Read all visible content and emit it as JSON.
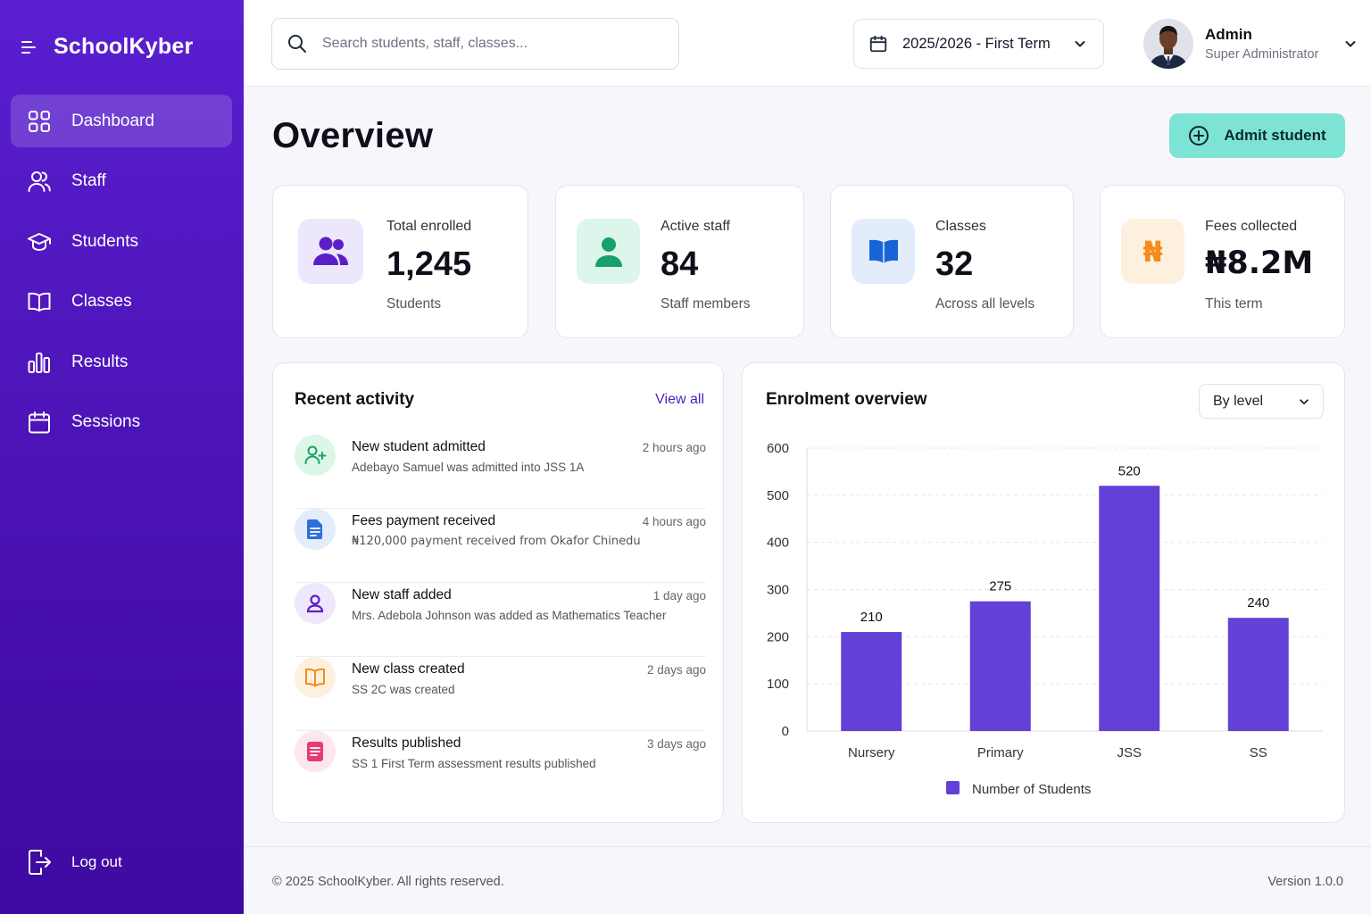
{
  "sidebar": {
    "brand": "SchoolKyber",
    "items": [
      {
        "label": "Dashboard",
        "icon": "dashboard-grid-icon",
        "active": true
      },
      {
        "label": "Staff",
        "icon": "users-icon"
      },
      {
        "label": "Students",
        "icon": "graduation-cap-icon"
      },
      {
        "label": "Classes",
        "icon": "open-book-icon"
      },
      {
        "label": "Results",
        "icon": "bar-chart-icon"
      },
      {
        "label": "Sessions",
        "icon": "calendar-icon"
      }
    ],
    "logout_label": "Log out"
  },
  "header": {
    "search_placeholder": "Search students, staff, classes...",
    "term": "2025/2026 - First Term",
    "user_name": "Admin",
    "user_role": "Super Administrator"
  },
  "main": {
    "title": "Overview",
    "admit_button": "Admit student"
  },
  "stats": [
    {
      "label": "Total enrolled",
      "value": "1,245",
      "sub": "Students",
      "icon": "users-icon",
      "color": "#5b1fc9",
      "bg": "#ede7fb"
    },
    {
      "label": "Active staff",
      "value": "84",
      "sub": "Staff members",
      "icon": "user-icon",
      "color": "#16a06a",
      "bg": "#dcf6ec"
    },
    {
      "label": "Classes",
      "value": "32",
      "sub": "Across all levels",
      "icon": "book-icon",
      "color": "#1565d8",
      "bg": "#e3ecfb"
    },
    {
      "label": "Fees collected",
      "value": "₦8.2M",
      "sub": "This term",
      "icon": "naira-icon",
      "glyph": "₦",
      "color": "#f28c1a",
      "bg": "#fdf0df"
    }
  ],
  "activity": {
    "title": "Recent activity",
    "view_all": "View all",
    "items": [
      {
        "title": "New student admitted",
        "desc": "Adebayo Samuel was admitted into JSS 1A",
        "time": "2 hours ago",
        "icon": "user-plus-icon",
        "color": "#1aa460",
        "bg": "#dcf7e8"
      },
      {
        "title": "Fees payment received",
        "desc": "₦120,000 payment received from Okafor Chinedu",
        "time": "4 hours ago",
        "icon": "document-icon",
        "color": "#2a6fdc",
        "bg": "#e3ecfb"
      },
      {
        "title": "New staff added",
        "desc": "Mrs. Adebola Johnson was added as Mathematics Teacher",
        "time": "1 day ago",
        "icon": "user-icon",
        "color": "#5b1fc9",
        "bg": "#efe8fc"
      },
      {
        "title": "New class created",
        "desc": "SS 2C was created",
        "time": "2 days ago",
        "icon": "book-icon",
        "color": "#f28c1a",
        "bg": "#fdf0df"
      },
      {
        "title": "Results published",
        "desc": "SS 1 First Term assessment results published",
        "time": "3 days ago",
        "icon": "report-icon",
        "color": "#e53b74",
        "bg": "#fde6ee"
      }
    ]
  },
  "enrolment": {
    "title": "Enrolment overview",
    "filter": "By level"
  },
  "chart_data": {
    "type": "bar",
    "categories": [
      "Nursery",
      "Primary",
      "JSS",
      "SS"
    ],
    "series": [
      {
        "name": "Number of Students",
        "values": [
          210,
          275,
          520,
          240
        ]
      }
    ],
    "ylim": [
      0,
      600
    ],
    "yticks": [
      0,
      100,
      200,
      300,
      400,
      500,
      600
    ],
    "grid": true,
    "legend": "bottom",
    "bar_color": "#6340d6",
    "xlabel": "",
    "ylabel": ""
  },
  "footer": {
    "copyright": "© 2025 SchoolKyber. All rights reserved.",
    "version": "Version 1.0.0"
  }
}
